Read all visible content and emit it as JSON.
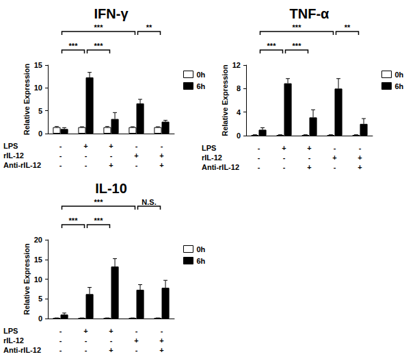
{
  "chart_data": [
    {
      "type": "bar",
      "title": "IFN-γ",
      "y_label": "Relative Expression",
      "categories": [
        null,
        null,
        null,
        null,
        null
      ],
      "series": [
        {
          "name": "0h",
          "color": "#ffffff",
          "values": [
            1.4,
            1.4,
            1.4,
            1.4,
            1.4
          ],
          "errors": [
            0.15,
            0.1,
            0.15,
            0.1,
            0.1
          ]
        },
        {
          "name": "6h",
          "color": "#000000",
          "values": [
            1.0,
            12.3,
            3.2,
            6.6,
            2.6
          ],
          "errors": [
            0.3,
            1.1,
            1.4,
            0.9,
            0.3
          ]
        }
      ],
      "ylim": [
        0,
        15
      ],
      "yticks": [
        0,
        5,
        10,
        15
      ],
      "grid": false,
      "legend": "upper right",
      "conditions": [
        {
          "label": "LPS",
          "signs": [
            "-",
            "+",
            "+",
            "-",
            "-"
          ]
        },
        {
          "label": "rIL-12",
          "signs": [
            "-",
            "-",
            "-",
            "+",
            "+"
          ]
        },
        {
          "label": "Anti-rIL-12",
          "signs": [
            "-",
            "-",
            "+",
            "-",
            "+"
          ]
        }
      ],
      "comparisons": [
        {
          "from": 0,
          "to": 1,
          "label": "***"
        },
        {
          "from": 1,
          "to": 2,
          "label": "***"
        },
        {
          "from": 0,
          "to": 3,
          "label": "***"
        },
        {
          "from": 3,
          "to": 4,
          "label": "**"
        }
      ]
    },
    {
      "type": "bar",
      "title": "TNF-α",
      "y_label": "Relative Expression",
      "categories": [
        null,
        null,
        null,
        null,
        null
      ],
      "series": [
        {
          "name": "0h",
          "color": "#ffffff",
          "values": [
            0.1,
            0.1,
            0.1,
            0.1,
            0.1
          ],
          "errors": [
            0.05,
            0.05,
            0.05,
            0.05,
            0.05
          ]
        },
        {
          "name": "6h",
          "color": "#000000",
          "values": [
            1.0,
            8.9,
            3.1,
            8.0,
            2.0
          ],
          "errors": [
            0.35,
            0.8,
            1.3,
            1.7,
            0.9
          ]
        }
      ],
      "ylim": [
        0,
        12
      ],
      "yticks": [
        0,
        4,
        8,
        12
      ],
      "grid": false,
      "legend": "upper right",
      "conditions": [
        {
          "label": "LPS",
          "signs": [
            "-",
            "+",
            "+",
            "-",
            "-"
          ]
        },
        {
          "label": "rIL-12",
          "signs": [
            "-",
            "-",
            "-",
            "+",
            "+"
          ]
        },
        {
          "label": "Anti-rIL-12",
          "signs": [
            "-",
            "-",
            "+",
            "-",
            "+"
          ]
        }
      ],
      "comparisons": [
        {
          "from": 0,
          "to": 1,
          "label": "***"
        },
        {
          "from": 1,
          "to": 2,
          "label": "***"
        },
        {
          "from": 0,
          "to": 3,
          "label": "***"
        },
        {
          "from": 3,
          "to": 4,
          "label": "**"
        }
      ]
    },
    {
      "type": "bar",
      "title": "IL-10",
      "y_label": "Relative Expression",
      "categories": [
        null,
        null,
        null,
        null,
        null
      ],
      "series": [
        {
          "name": "0h",
          "color": "#ffffff",
          "values": [
            0.1,
            0.1,
            0.1,
            0.1,
            0.1
          ],
          "errors": [
            0.05,
            0.05,
            0.05,
            0.05,
            0.05
          ]
        },
        {
          "name": "6h",
          "color": "#000000",
          "values": [
            1.0,
            6.2,
            13.2,
            7.3,
            7.8
          ],
          "errors": [
            0.4,
            1.7,
            2.0,
            1.3,
            1.9
          ]
        }
      ],
      "ylim": [
        0,
        20
      ],
      "yticks": [
        0,
        5,
        10,
        15,
        20
      ],
      "grid": false,
      "legend": "upper right",
      "conditions": [
        {
          "label": "LPS",
          "signs": [
            "-",
            "+",
            "+",
            "-",
            "-"
          ]
        },
        {
          "label": "rIL-12",
          "signs": [
            "-",
            "-",
            "-",
            "+",
            "+"
          ]
        },
        {
          "label": "Anti-rIL-12",
          "signs": [
            "-",
            "-",
            "+",
            "-",
            "+"
          ]
        }
      ],
      "comparisons": [
        {
          "from": 0,
          "to": 1,
          "label": "***"
        },
        {
          "from": 1,
          "to": 2,
          "label": "***"
        },
        {
          "from": 0,
          "to": 3,
          "label": "***"
        },
        {
          "from": 3,
          "to": 4,
          "label": "N.S."
        }
      ]
    }
  ]
}
